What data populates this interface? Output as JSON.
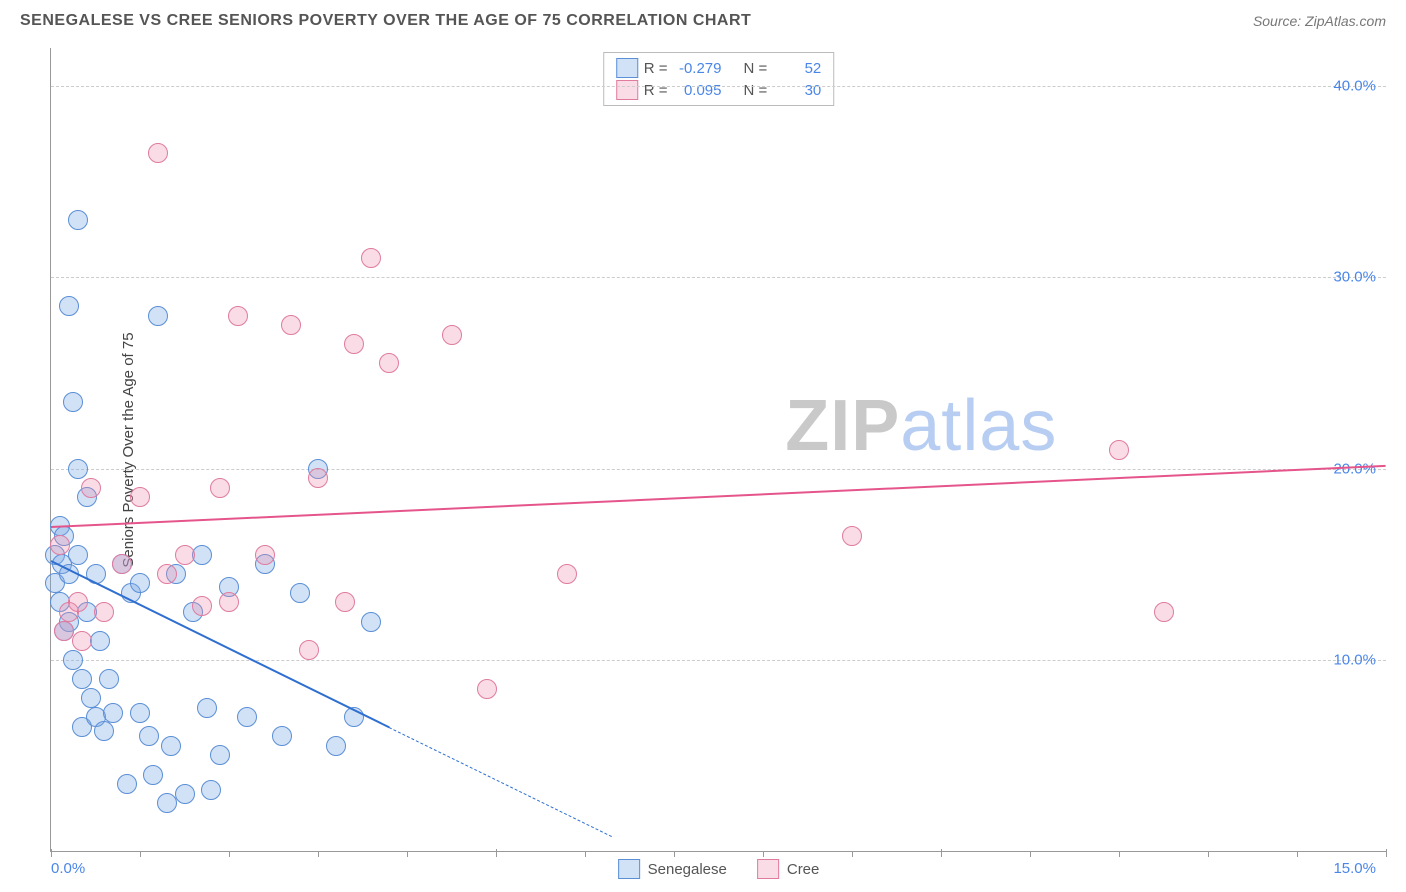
{
  "header": {
    "title": "SENEGALESE VS CREE SENIORS POVERTY OVER THE AGE OF 75 CORRELATION CHART",
    "source": "Source: ZipAtlas.com"
  },
  "chart": {
    "type": "scatter",
    "ylabel": "Seniors Poverty Over the Age of 75",
    "background_color": "#ffffff",
    "grid_color": "#cccccc",
    "axis_color": "#999999",
    "tick_label_color": "#4a86e8",
    "xlim": [
      0,
      15
    ],
    "ylim": [
      0,
      42
    ],
    "x_ticks_major": [
      0,
      5,
      10,
      15
    ],
    "x_ticks_minor": [
      1,
      2,
      3,
      4,
      6,
      7,
      8,
      9,
      11,
      12,
      13,
      14
    ],
    "y_gridlines": [
      10,
      20,
      30,
      40
    ],
    "x_tick_labels": {
      "left": "0.0%",
      "right": "15.0%"
    },
    "y_tick_labels": [
      {
        "v": 10,
        "label": "10.0%"
      },
      {
        "v": 20,
        "label": "20.0%"
      },
      {
        "v": 30,
        "label": "30.0%"
      },
      {
        "v": 40,
        "label": "40.0%"
      }
    ],
    "point_radius": 9,
    "point_border_width": 1.5,
    "series": [
      {
        "name": "Senegalese",
        "fill": "rgba(124,170,230,0.35)",
        "stroke": "#5b8fd6",
        "points": [
          [
            0.05,
            14.0
          ],
          [
            0.05,
            15.5
          ],
          [
            0.1,
            13.0
          ],
          [
            0.1,
            17.0
          ],
          [
            0.12,
            15.0
          ],
          [
            0.15,
            16.5
          ],
          [
            0.2,
            14.5
          ],
          [
            0.2,
            12.0
          ],
          [
            0.2,
            28.5
          ],
          [
            0.25,
            23.5
          ],
          [
            0.3,
            20.0
          ],
          [
            0.3,
            15.5
          ],
          [
            0.3,
            33.0
          ],
          [
            0.35,
            9.0
          ],
          [
            0.35,
            6.5
          ],
          [
            0.4,
            18.5
          ],
          [
            0.4,
            12.5
          ],
          [
            0.45,
            8.0
          ],
          [
            0.5,
            7.0
          ],
          [
            0.5,
            14.5
          ],
          [
            0.55,
            11.0
          ],
          [
            0.6,
            6.3
          ],
          [
            0.65,
            9.0
          ],
          [
            0.7,
            7.2
          ],
          [
            0.8,
            15.0
          ],
          [
            0.85,
            3.5
          ],
          [
            0.9,
            13.5
          ],
          [
            1.0,
            14.0
          ],
          [
            1.0,
            7.2
          ],
          [
            1.1,
            6.0
          ],
          [
            1.15,
            4.0
          ],
          [
            1.2,
            28.0
          ],
          [
            1.3,
            2.5
          ],
          [
            1.35,
            5.5
          ],
          [
            1.4,
            14.5
          ],
          [
            1.5,
            3.0
          ],
          [
            1.6,
            12.5
          ],
          [
            1.7,
            15.5
          ],
          [
            1.75,
            7.5
          ],
          [
            1.8,
            3.2
          ],
          [
            1.9,
            5.0
          ],
          [
            2.0,
            13.8
          ],
          [
            2.2,
            7.0
          ],
          [
            2.4,
            15.0
          ],
          [
            2.6,
            6.0
          ],
          [
            2.8,
            13.5
          ],
          [
            3.0,
            20.0
          ],
          [
            3.2,
            5.5
          ],
          [
            3.4,
            7.0
          ],
          [
            3.6,
            12.0
          ],
          [
            0.15,
            11.5
          ],
          [
            0.25,
            10.0
          ]
        ]
      },
      {
        "name": "Cree",
        "fill": "rgba(236,140,170,0.30)",
        "stroke": "#e07ba0",
        "points": [
          [
            0.1,
            16.0
          ],
          [
            0.15,
            11.5
          ],
          [
            0.2,
            12.5
          ],
          [
            0.3,
            13.0
          ],
          [
            0.35,
            11.0
          ],
          [
            0.45,
            19.0
          ],
          [
            0.6,
            12.5
          ],
          [
            0.8,
            15.0
          ],
          [
            1.0,
            18.5
          ],
          [
            1.2,
            36.5
          ],
          [
            1.3,
            14.5
          ],
          [
            1.5,
            15.5
          ],
          [
            1.7,
            12.8
          ],
          [
            1.9,
            19.0
          ],
          [
            2.0,
            13.0
          ],
          [
            2.1,
            28.0
          ],
          [
            2.4,
            15.5
          ],
          [
            2.7,
            27.5
          ],
          [
            2.9,
            10.5
          ],
          [
            3.0,
            19.5
          ],
          [
            3.3,
            13.0
          ],
          [
            3.4,
            26.5
          ],
          [
            3.6,
            31.0
          ],
          [
            3.8,
            25.5
          ],
          [
            4.5,
            27.0
          ],
          [
            4.9,
            8.5
          ],
          [
            5.8,
            14.5
          ],
          [
            9.0,
            16.5
          ],
          [
            12.0,
            21.0
          ],
          [
            12.5,
            12.5
          ]
        ]
      }
    ],
    "trendlines": [
      {
        "name": "senegalese-trend",
        "color": "#2f6fd0",
        "width": 2.5,
        "solid_from": [
          0,
          15.2
        ],
        "solid_to": [
          3.8,
          6.5
        ],
        "dashed_to": [
          6.3,
          0.8
        ]
      },
      {
        "name": "cree-trend",
        "color": "#e5558b",
        "width": 2,
        "solid_from": [
          0,
          17.0
        ],
        "solid_to": [
          15,
          20.2
        ],
        "dashed_to": null
      }
    ],
    "stats_box": {
      "rows": [
        {
          "swatch_fill": "rgba(124,170,230,0.35)",
          "swatch_stroke": "#5b8fd6",
          "r_label": "R =",
          "r_value": "-0.279",
          "n_label": "N =",
          "n_value": "52"
        },
        {
          "swatch_fill": "rgba(236,140,170,0.30)",
          "swatch_stroke": "#e07ba0",
          "r_label": "R =",
          "r_value": "0.095",
          "n_label": "N =",
          "n_value": "30"
        }
      ]
    },
    "x_legend": [
      {
        "swatch_fill": "rgba(124,170,230,0.35)",
        "swatch_stroke": "#5b8fd6",
        "label": "Senegalese"
      },
      {
        "swatch_fill": "rgba(236,140,170,0.30)",
        "swatch_stroke": "#e07ba0",
        "label": "Cree"
      }
    ],
    "watermark": {
      "part1": "ZIP",
      "part2": "atlas"
    }
  }
}
